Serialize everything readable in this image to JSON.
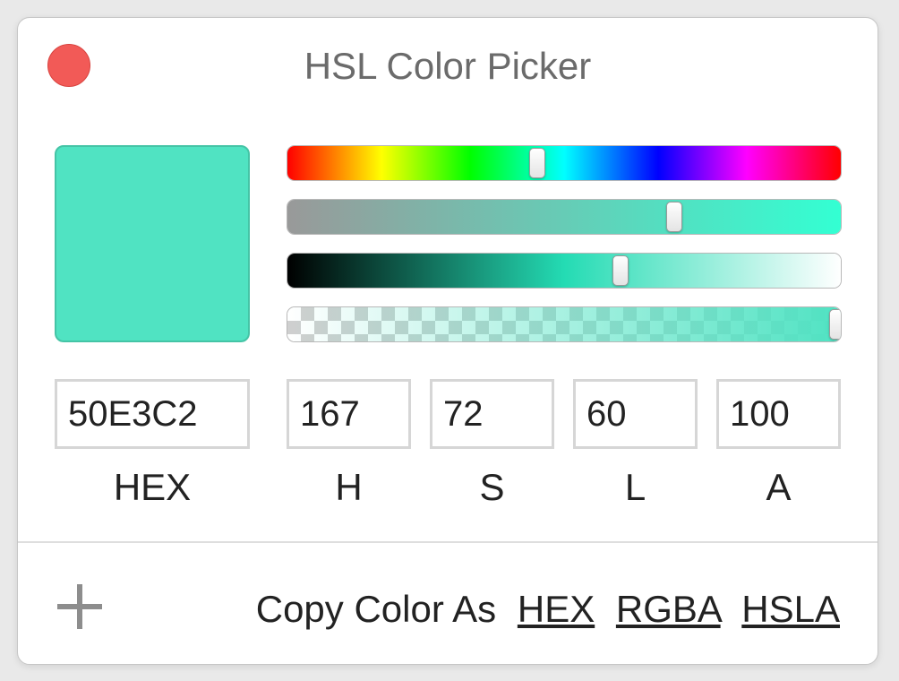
{
  "window": {
    "title": "HSL Color Picker"
  },
  "color": {
    "hex": "50E3C2",
    "swatch_hex": "#50E3C2",
    "h": 167,
    "s": 72,
    "l": 60,
    "a": 100
  },
  "sliders": {
    "hue_fraction": 0.45,
    "saturation_fraction": 0.697,
    "lightness_fraction": 0.6,
    "alpha_fraction": 0.99
  },
  "fields": {
    "hex_label": "HEX",
    "h_label": "H",
    "s_label": "S",
    "l_label": "L",
    "a_label": "A"
  },
  "footer": {
    "copy_prefix": "Copy Color As",
    "copy_hex": "HEX",
    "copy_rgba": "RGBA",
    "copy_hsla": "HSLA"
  },
  "icons": {
    "close": "close-icon",
    "add": "plus-icon"
  }
}
